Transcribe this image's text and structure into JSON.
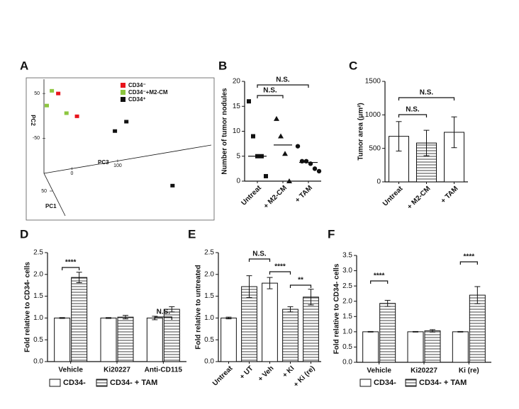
{
  "chart_data": [
    {
      "panel": "A",
      "type": "scatter3d",
      "xlabel": "PC3",
      "ylabel": "PC2",
      "zlabel": "PC1",
      "xlim": [
        -100,
        311
      ],
      "ylim": [
        -233,
        85
      ],
      "xticks": [
        0,
        100
      ],
      "yticks": [
        50,
        -50
      ],
      "zticks": [
        50
      ],
      "series": [
        {
          "name": "CD34⁻",
          "color": "#e8141c",
          "x": [
            -30,
            11
          ],
          "y": [
            50,
            -1
          ]
        },
        {
          "name": "CD34⁻+M2-CM",
          "color": "#8dc63f",
          "x": [
            -44,
            -55,
            -12
          ],
          "y": [
            56,
            23,
            6
          ]
        },
        {
          "name": "CD34⁺",
          "color": "#111111",
          "x": [
            94,
            119,
            220
          ],
          "y": [
            -34,
            -13,
            -156
          ]
        }
      ]
    },
    {
      "panel": "B",
      "type": "dot",
      "ylabel": "Number of tumor nodules",
      "categories": [
        "Untreat",
        "+ M2-CM",
        "+ TAM"
      ],
      "values": [
        [
          16,
          9,
          5,
          5,
          1
        ],
        [
          12.5,
          9,
          5.5,
          0
        ],
        [
          7,
          4,
          4,
          3.5,
          2.5,
          2
        ]
      ],
      "medians": [
        5,
        7.25,
        3.75
      ],
      "markers": [
        "square",
        "triangle",
        "circle"
      ],
      "ylim": [
        0,
        20
      ],
      "yticks": [
        0,
        5,
        10,
        15,
        20
      ],
      "annotations": [
        "N.S.",
        "N.S."
      ]
    },
    {
      "panel": "C",
      "type": "bar",
      "ylabel": "Tumor area (μm²)",
      "categories": [
        "Untreat",
        "+ M2-CM",
        "+ TAM"
      ],
      "values": [
        680,
        580,
        740
      ],
      "errors": [
        220,
        190,
        230
      ],
      "hatch": [
        false,
        true,
        false
      ],
      "ylim": [
        0,
        1500
      ],
      "yticks": [
        0,
        500,
        1000,
        1500
      ],
      "annotations": [
        "N.S.",
        "N.S."
      ]
    },
    {
      "panel": "D",
      "type": "groupedbar",
      "ylabel": "Fold relative to CD34- cells",
      "categories": [
        "Vehicle",
        "Ki20227",
        "Anti-CD115"
      ],
      "series": [
        {
          "name": "CD34-",
          "hatch": false,
          "values": [
            1,
            1,
            1
          ],
          "errors": [
            0.01,
            0.01,
            0.04
          ]
        },
        {
          "name": "CD34- + TAM",
          "hatch": true,
          "values": [
            1.93,
            1.02,
            1.2
          ],
          "errors": [
            0.12,
            0.04,
            0.06
          ]
        }
      ],
      "ylim": [
        0,
        2.5
      ],
      "yticks": [
        {
          "value": 0,
          "label": "0.0"
        },
        {
          "value": 0.5,
          "label": "0.5"
        },
        {
          "value": 1,
          "label": "1.0"
        },
        {
          "value": 1.5,
          "label": "1.5"
        },
        {
          "value": 2,
          "label": "2.0"
        },
        {
          "value": 2.5,
          "label": "2.5"
        }
      ],
      "annotations": [
        "****",
        "N.S."
      ]
    },
    {
      "panel": "E",
      "type": "bar",
      "ylabel": "Fold relative to untreated",
      "categories": [
        "Untreat",
        "+ UT",
        "+ Veh",
        "+ KI",
        "+ Ki (re)"
      ],
      "values": [
        1.0,
        1.72,
        1.8,
        1.2,
        1.48
      ],
      "errors": [
        0.02,
        0.25,
        0.13,
        0.06,
        0.18
      ],
      "hatch": [
        false,
        true,
        false,
        true,
        true
      ],
      "ylim": [
        0,
        2.5
      ],
      "yticks": [
        {
          "value": 0,
          "label": "0.0"
        },
        {
          "value": 0.5,
          "label": "0.5"
        },
        {
          "value": 1,
          "label": "1.0"
        },
        {
          "value": 1.5,
          "label": "1.5"
        },
        {
          "value": 2,
          "label": "2.0"
        },
        {
          "value": 2.5,
          "label": "2.5"
        }
      ],
      "annotations": [
        "N.S.",
        "****",
        "**"
      ]
    },
    {
      "panel": "F",
      "type": "groupedbar",
      "ylabel": "Fold relative to CD34- cells",
      "categories": [
        "Vehicle",
        "Ki20227",
        "Ki (re)"
      ],
      "series": [
        {
          "name": "CD34-",
          "hatch": false,
          "values": [
            1,
            1,
            1
          ],
          "errors": [
            0.01,
            0.01,
            0.01
          ]
        },
        {
          "name": "CD34- + TAM",
          "hatch": true,
          "values": [
            1.93,
            1.03,
            2.2
          ],
          "errors": [
            0.1,
            0.04,
            0.28
          ]
        }
      ],
      "ylim": [
        0,
        3.5
      ],
      "yticks": [
        {
          "value": 0,
          "label": "0.0"
        },
        {
          "value": 0.5,
          "label": "0.5"
        },
        {
          "value": 1,
          "label": "1.0"
        },
        {
          "value": 1.5,
          "label": "1.5"
        },
        {
          "value": 2,
          "label": "2.0"
        },
        {
          "value": 2.5,
          "label": "2.5"
        },
        {
          "value": 3,
          "label": "3.0"
        },
        {
          "value": 3.5,
          "label": "3.5"
        }
      ],
      "annotations": [
        "****",
        "****"
      ]
    }
  ]
}
